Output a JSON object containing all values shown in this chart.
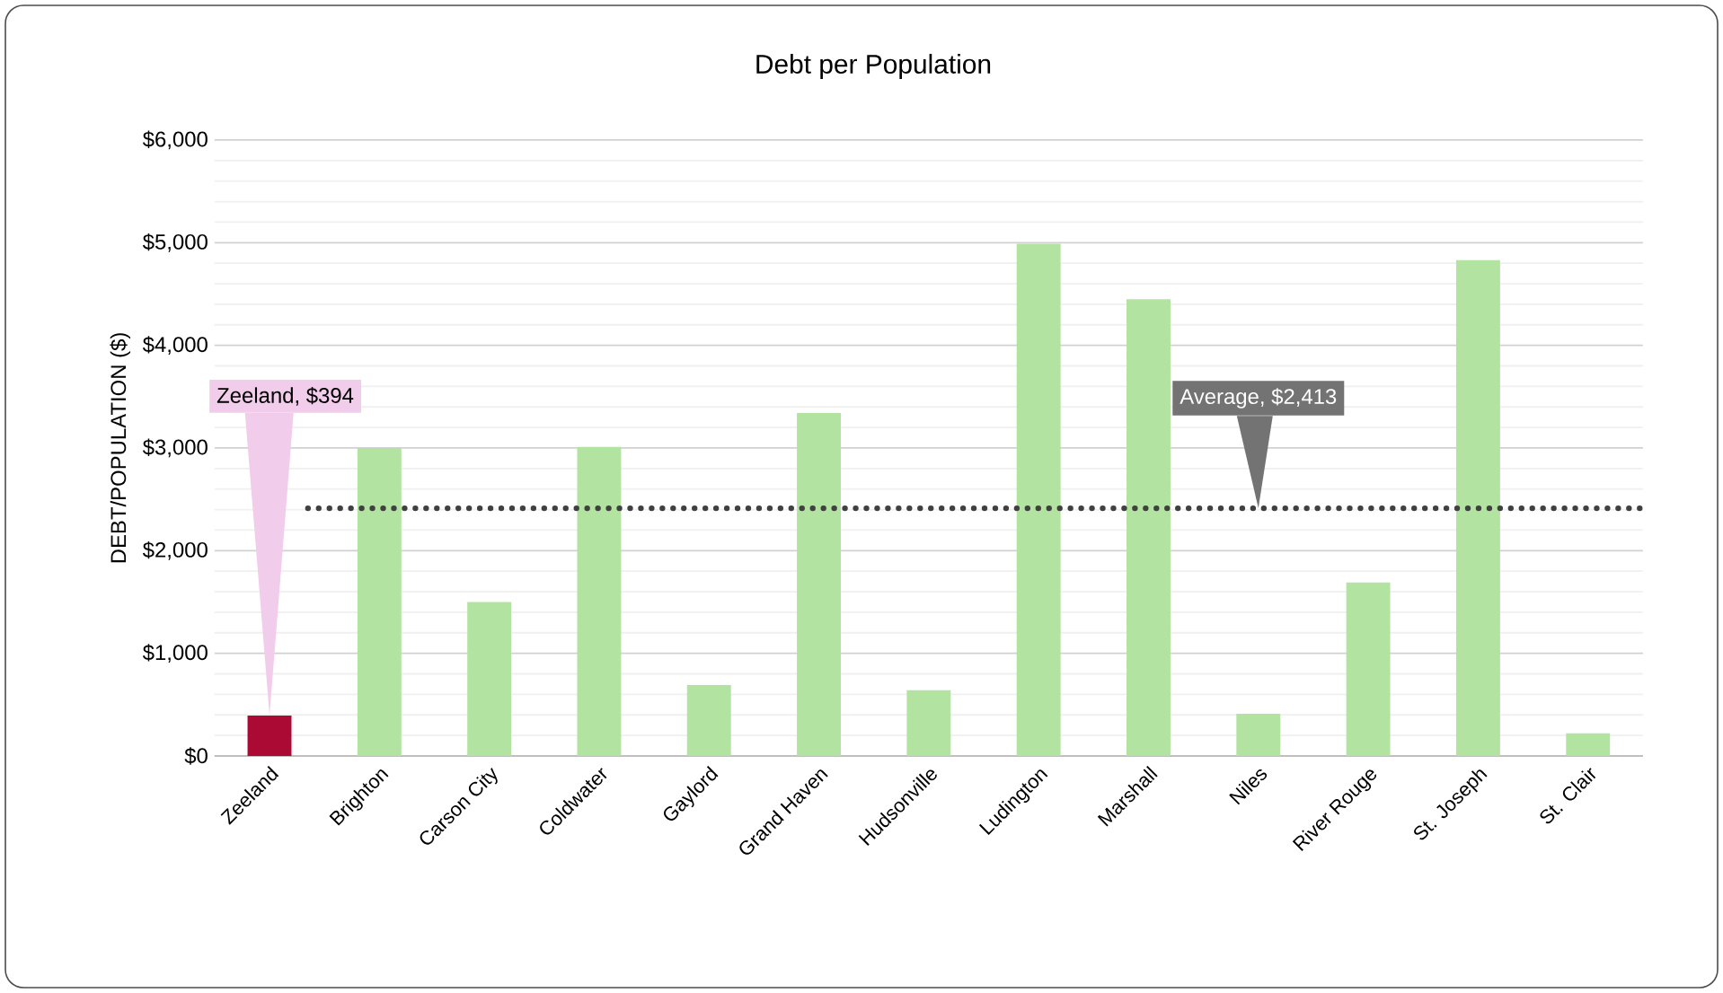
{
  "chart_data": {
    "type": "bar",
    "title": "Debt per Population",
    "ylabel": "DEBT/POPULATION ($)",
    "categories": [
      "Zeeland",
      "Brighton",
      "Carson City",
      "Coldwater",
      "Gaylord",
      "Grand Haven",
      "Hudsonville",
      "Ludington",
      "Marshall",
      "Niles",
      "River Rouge",
      "St. Joseph",
      "St. Clair"
    ],
    "values": [
      394,
      3000,
      1500,
      3010,
      690,
      3340,
      640,
      4990,
      4450,
      410,
      1690,
      4830,
      220
    ],
    "colors": [
      "#ab0a35",
      "#b3e3a0",
      "#b3e3a0",
      "#b3e3a0",
      "#b3e3a0",
      "#b3e3a0",
      "#b3e3a0",
      "#b3e3a0",
      "#b3e3a0",
      "#b3e3a0",
      "#b3e3a0",
      "#b3e3a0",
      "#b3e3a0"
    ],
    "ylim": [
      0,
      6000
    ],
    "yticks": [
      {
        "value": 0,
        "label": "$0"
      },
      {
        "value": 1000,
        "label": "$1,000"
      },
      {
        "value": 2000,
        "label": "$2,000"
      },
      {
        "value": 3000,
        "label": "$3,000"
      },
      {
        "value": 4000,
        "label": "$4,000"
      },
      {
        "value": 5000,
        "label": "$5,000"
      },
      {
        "value": 6000,
        "label": "$6,000"
      }
    ],
    "grid": "y",
    "ref_lines": [
      {
        "axis": "y",
        "value": 2413,
        "label": "Average, $2,413",
        "color": "#404040",
        "line_style": "dotted"
      }
    ],
    "annotations": [
      {
        "text": "Zeeland, $394",
        "x": "Zeeland",
        "y": 394
      }
    ]
  }
}
